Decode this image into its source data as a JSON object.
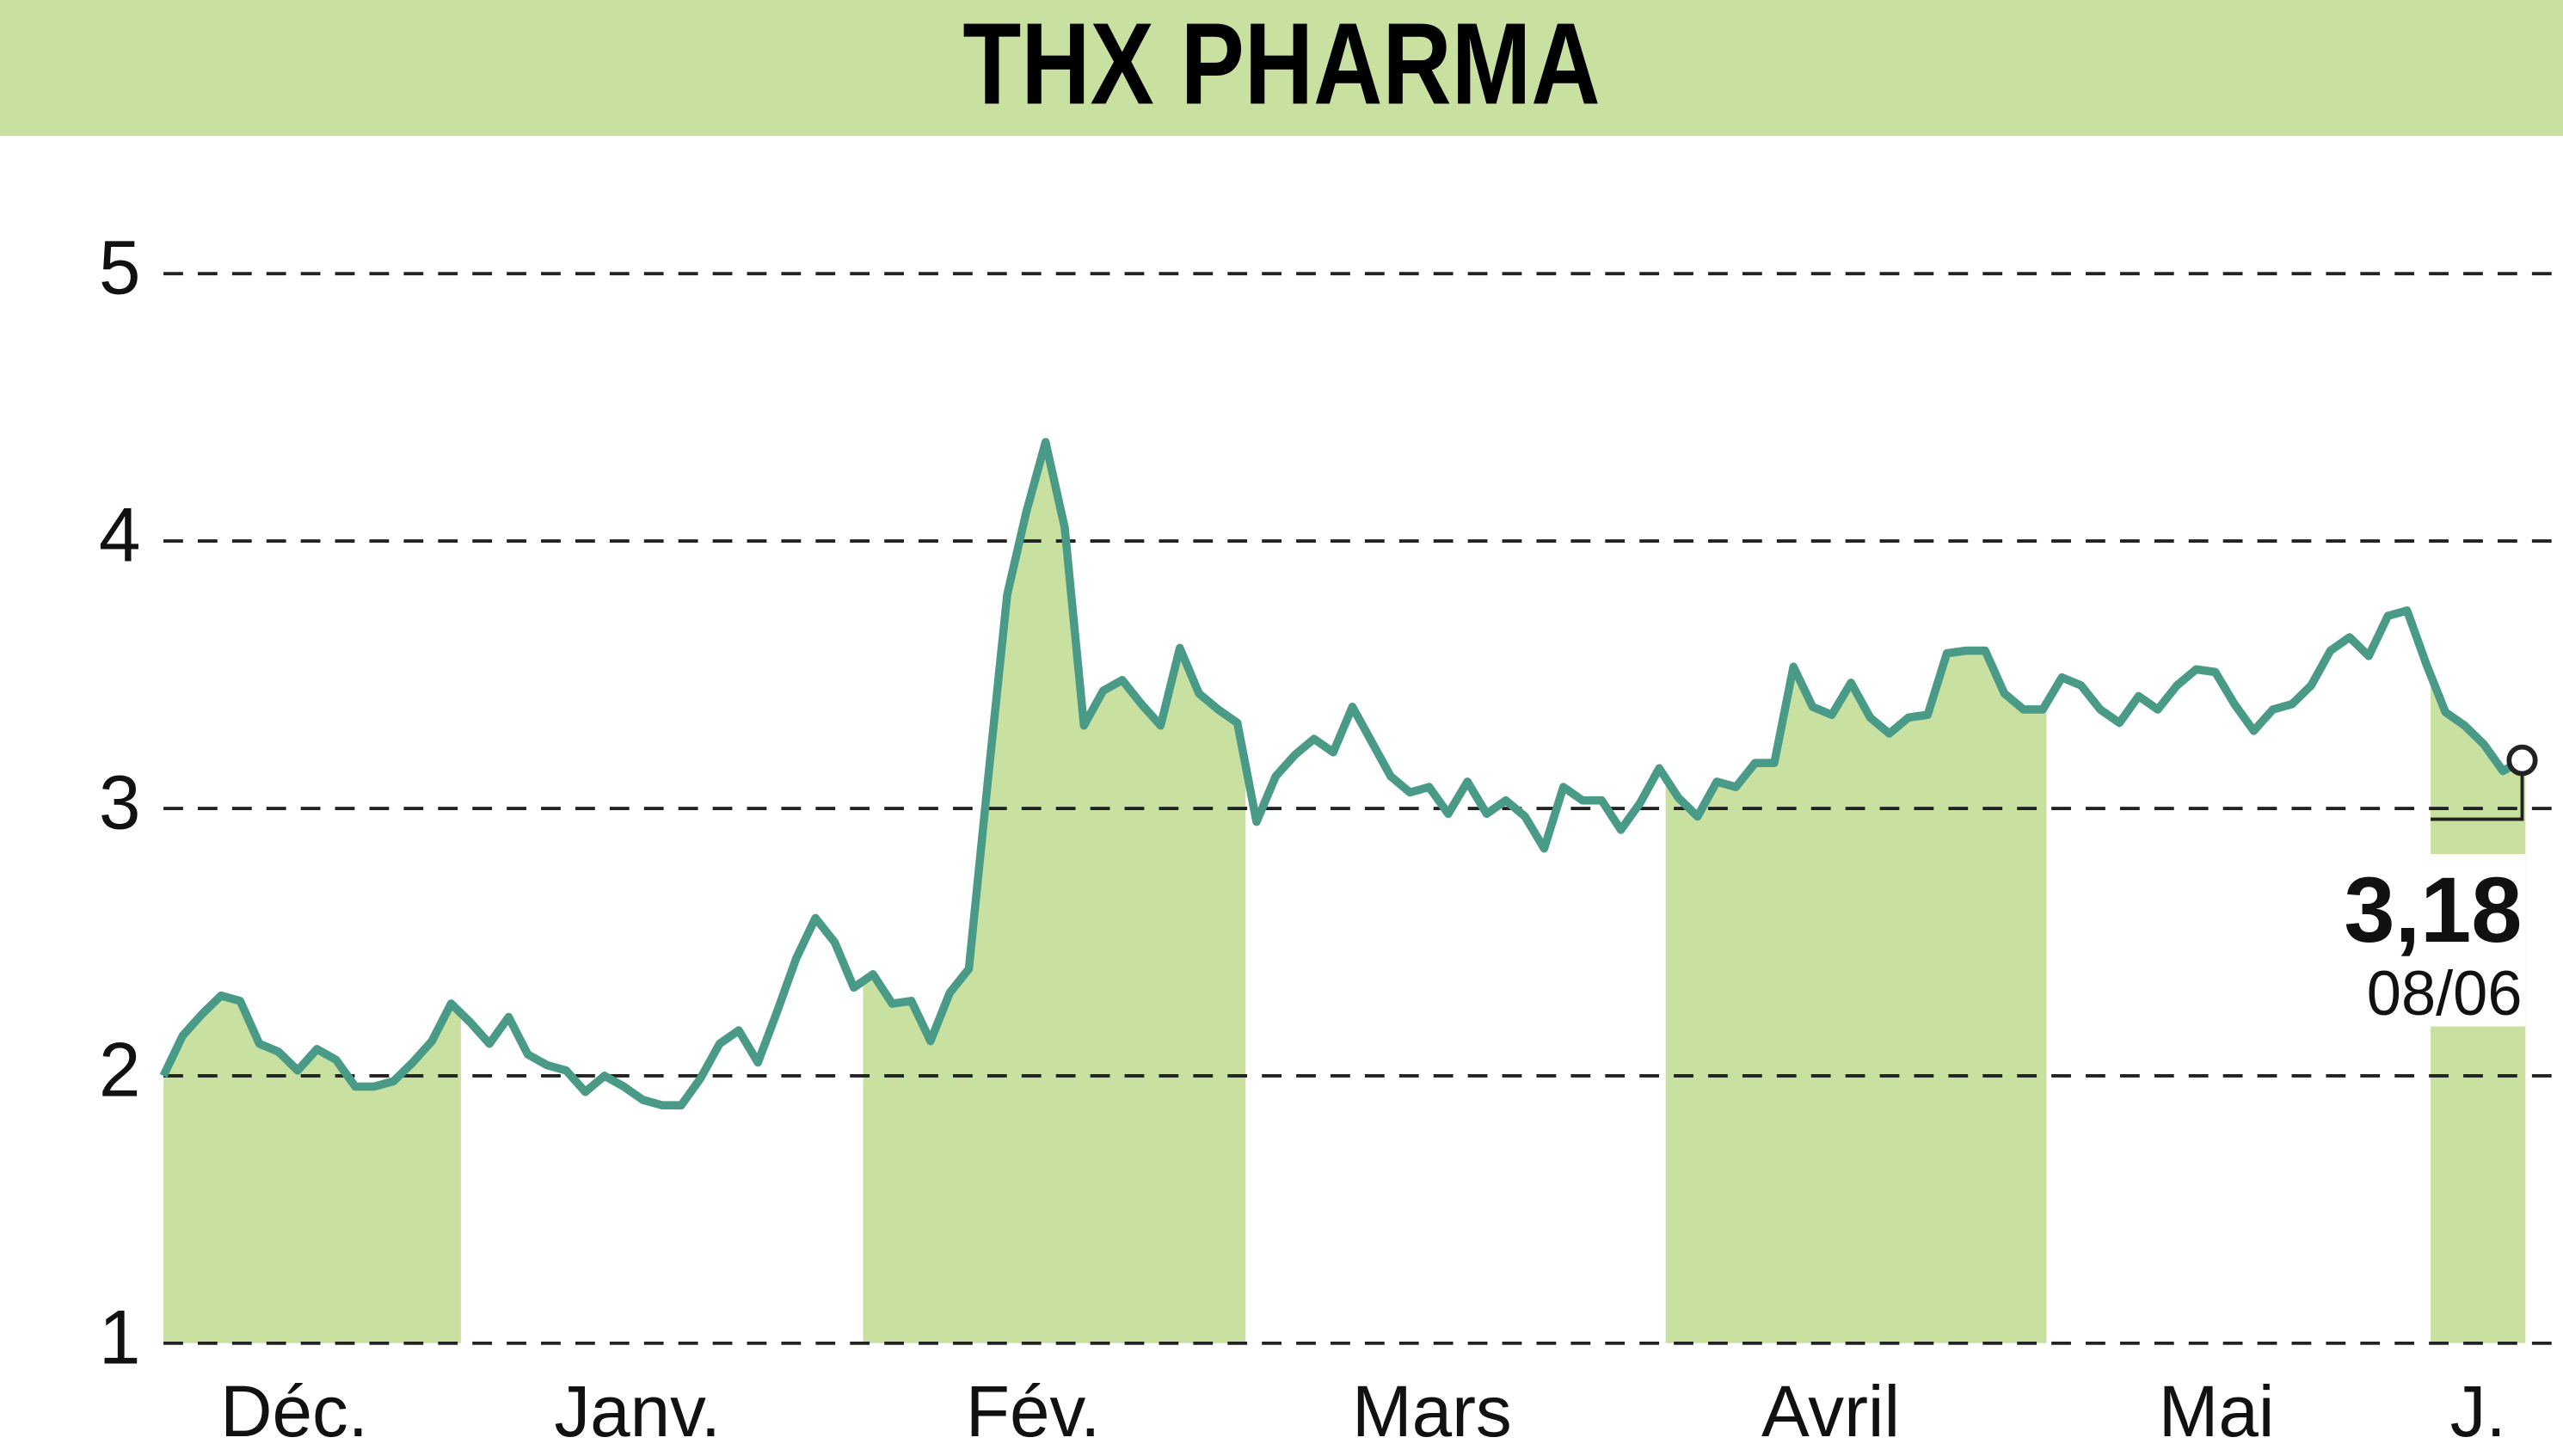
{
  "chart_data": {
    "type": "line",
    "title": "THX PHARMA",
    "x_labels": [
      "Déc.",
      "Janv.",
      "Fév.",
      "Mars",
      "Avril",
      "Mai",
      "J."
    ],
    "series": [
      {
        "name": "THX PHARMA",
        "color": "#4a9a88",
        "values": [
          2.0,
          2.15,
          2.23,
          2.3,
          2.28,
          2.12,
          2.09,
          2.02,
          2.1,
          2.06,
          1.96,
          1.96,
          1.98,
          2.05,
          2.13,
          2.27,
          2.2,
          2.12,
          2.22,
          2.08,
          2.04,
          2.02,
          1.94,
          2.0,
          1.96,
          1.91,
          1.89,
          1.89,
          1.99,
          2.12,
          2.17,
          2.05,
          2.24,
          2.44,
          2.59,
          2.5,
          2.33,
          2.38,
          2.27,
          2.28,
          2.13,
          2.31,
          2.4,
          3.11,
          3.8,
          4.11,
          4.37,
          4.05,
          3.31,
          3.44,
          3.48,
          3.39,
          3.31,
          3.6,
          3.43,
          3.37,
          3.32,
          2.95,
          3.12,
          3.2,
          3.26,
          3.21,
          3.38,
          3.25,
          3.12,
          3.06,
          3.08,
          2.98,
          3.1,
          2.98,
          3.03,
          2.97,
          2.85,
          3.08,
          3.03,
          3.03,
          2.92,
          3.02,
          3.15,
          3.04,
          2.97,
          3.1,
          3.08,
          3.17,
          3.17,
          3.53,
          3.38,
          3.35,
          3.47,
          3.34,
          3.28,
          3.34,
          3.35,
          3.58,
          3.59,
          3.59,
          3.43,
          3.37,
          3.37,
          3.49,
          3.46,
          3.37,
          3.32,
          3.42,
          3.37,
          3.46,
          3.52,
          3.51,
          3.39,
          3.29,
          3.37,
          3.39,
          3.46,
          3.59,
          3.64,
          3.57,
          3.72,
          3.74,
          3.54,
          3.36,
          3.31,
          3.24,
          3.14,
          3.18
        ]
      }
    ],
    "last_value_label": "3,18",
    "last_date": "08/06",
    "ylim": [
      1,
      5
    ],
    "yticks": [
      1,
      2,
      3,
      4,
      5
    ],
    "grid": true,
    "band_color": "#c8e0a0"
  }
}
